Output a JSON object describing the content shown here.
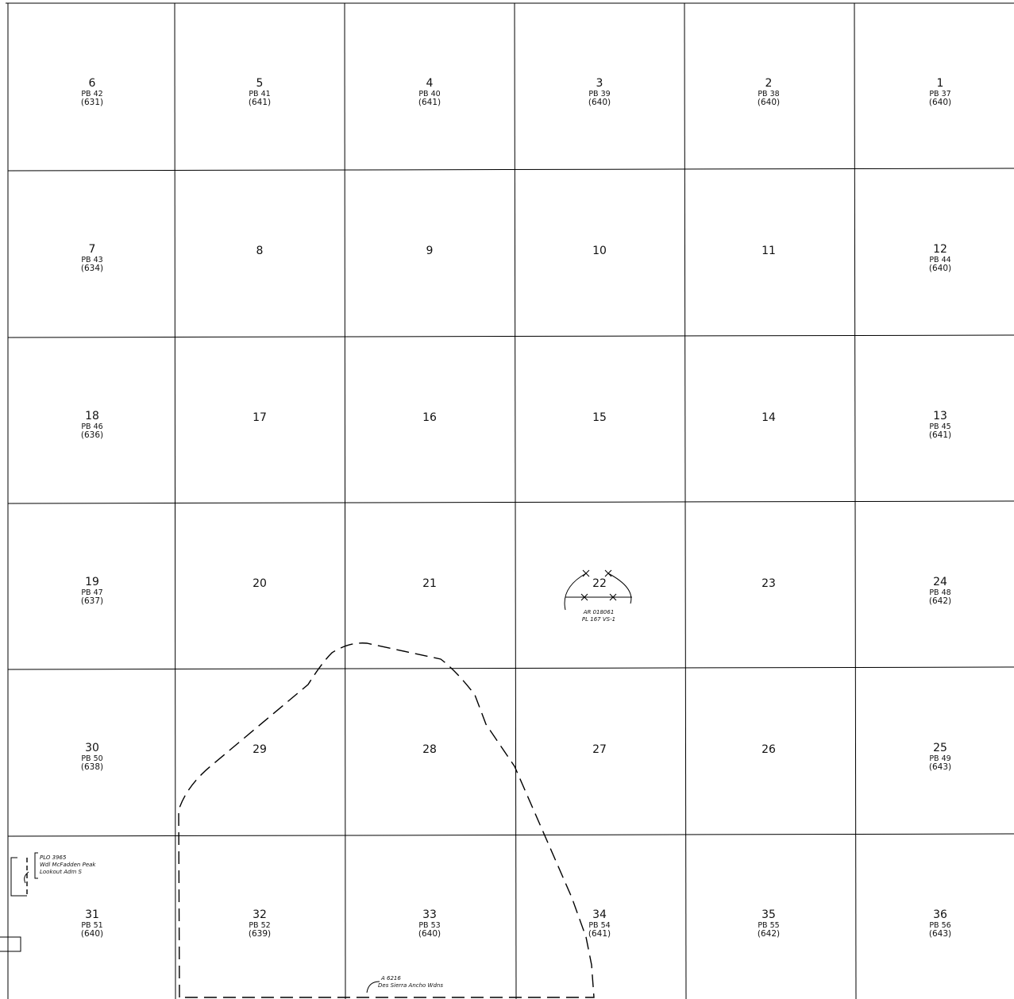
{
  "sections": [
    {
      "num": "6",
      "pb": "PB 42",
      "acres": "(631)"
    },
    {
      "num": "5",
      "pb": "PB 41",
      "acres": "(641)"
    },
    {
      "num": "4",
      "pb": "PB 40",
      "acres": "(641)"
    },
    {
      "num": "3",
      "pb": "PB 39",
      "acres": "(640)"
    },
    {
      "num": "2",
      "pb": "PB 38",
      "acres": "(640)"
    },
    {
      "num": "1",
      "pb": "PB 37",
      "acres": "(640)"
    },
    {
      "num": "7",
      "pb": "PB 43",
      "acres": "(634)"
    },
    {
      "num": "8",
      "pb": "",
      "acres": ""
    },
    {
      "num": "9",
      "pb": "",
      "acres": ""
    },
    {
      "num": "10",
      "pb": "",
      "acres": ""
    },
    {
      "num": "11",
      "pb": "",
      "acres": ""
    },
    {
      "num": "12",
      "pb": "PB 44",
      "acres": "(640)"
    },
    {
      "num": "18",
      "pb": "PB 46",
      "acres": "(636)"
    },
    {
      "num": "17",
      "pb": "",
      "acres": ""
    },
    {
      "num": "16",
      "pb": "",
      "acres": ""
    },
    {
      "num": "15",
      "pb": "",
      "acres": ""
    },
    {
      "num": "14",
      "pb": "",
      "acres": ""
    },
    {
      "num": "13",
      "pb": "PB 45",
      "acres": "(641)"
    },
    {
      "num": "19",
      "pb": "PB 47",
      "acres": "(637)"
    },
    {
      "num": "20",
      "pb": "",
      "acres": ""
    },
    {
      "num": "21",
      "pb": "",
      "acres": ""
    },
    {
      "num": "22",
      "pb": "",
      "acres": ""
    },
    {
      "num": "23",
      "pb": "",
      "acres": ""
    },
    {
      "num": "24",
      "pb": "PB 48",
      "acres": "(642)"
    },
    {
      "num": "30",
      "pb": "PB 50",
      "acres": "(638)"
    },
    {
      "num": "29",
      "pb": "",
      "acres": ""
    },
    {
      "num": "28",
      "pb": "",
      "acres": ""
    },
    {
      "num": "27",
      "pb": "",
      "acres": ""
    },
    {
      "num": "26",
      "pb": "",
      "acres": ""
    },
    {
      "num": "25",
      "pb": "PB 49",
      "acres": "(643)"
    },
    {
      "num": "31",
      "pb": "PB 51",
      "acres": "(640)"
    },
    {
      "num": "32",
      "pb": "PB 52",
      "acres": "(639)"
    },
    {
      "num": "33",
      "pb": "PB 53",
      "acres": "(640)"
    },
    {
      "num": "34",
      "pb": "PB 54",
      "acres": "(641)"
    },
    {
      "num": "35",
      "pb": "PB 55",
      "acres": "(642)"
    },
    {
      "num": "36",
      "pb": "PB 56",
      "acres": "(643)"
    }
  ],
  "annotations": {
    "sec22_line1": "AR 018061",
    "sec22_line2": "PL 167 VS-1",
    "plo_line1": "PLO 3965",
    "plo_line2": "Wdl McFadden Peak",
    "plo_line3": "Lookout Adm S",
    "bottom_line1": "A 6216",
    "bottom_line2": "Des Sierra Ancho Wdns"
  }
}
